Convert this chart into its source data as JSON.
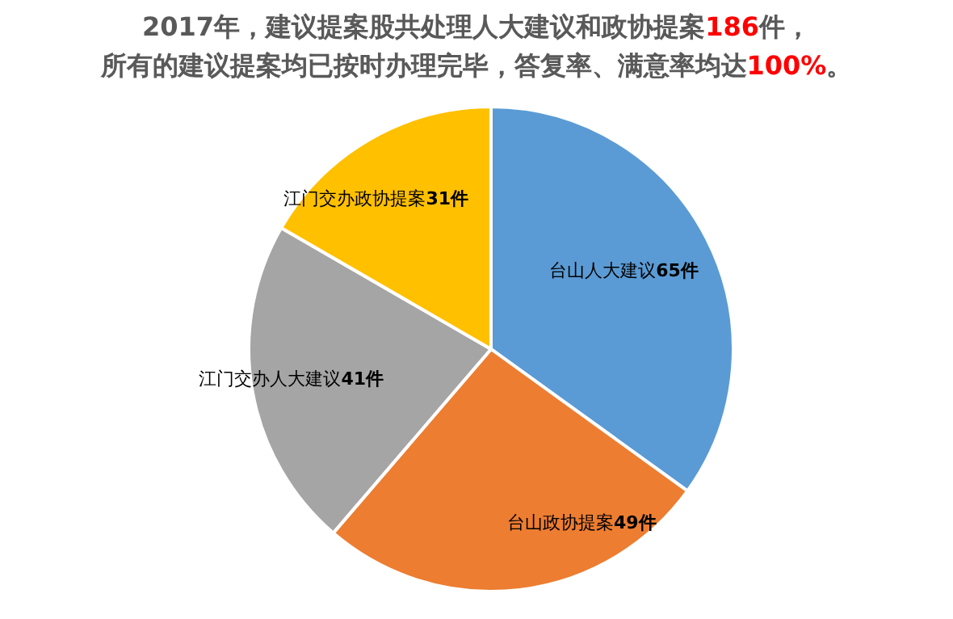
{
  "chart_data": {
    "type": "pie",
    "title": "2017年，建议提案股共处理人大建议和政协提案186件，",
    "subtitle": "所有的建议提案均已按时办理完毕，答复率、满意率均达100%。",
    "categories": [
      "台山人大建议",
      "台山政协提案",
      "江门交办人大建议",
      "江门交办政协提案"
    ],
    "values": [
      65,
      49,
      41,
      31
    ],
    "value_labels": [
      "65件",
      "49件",
      "41件",
      "31件"
    ],
    "colors": [
      "#5b9bd5",
      "#ed7d31",
      "#a5a5a5",
      "#ffc000"
    ]
  }
}
